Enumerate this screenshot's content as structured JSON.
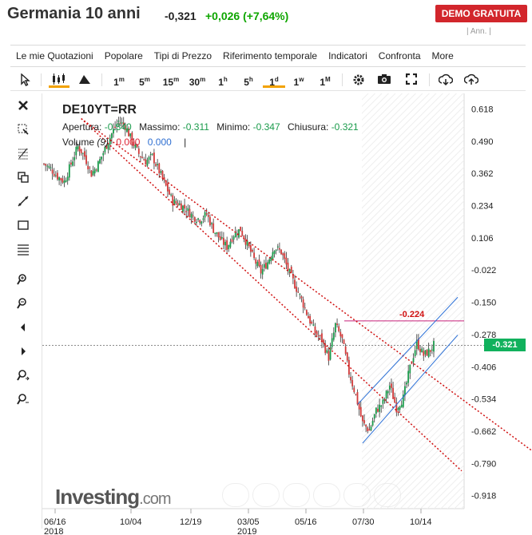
{
  "header": {
    "title": "Germania 10 anni",
    "last": "-0,321",
    "change": "+0,026 (+7,64%)",
    "demo_button": "DEMO GRATUITA",
    "ann": "| Ann. |"
  },
  "menu": [
    "Le mie Quotazioni",
    "Popolare",
    "Tipi di Prezzo",
    "Riferimento temporale",
    "Indicatori",
    "Confronta",
    "More"
  ],
  "toolbar": {
    "cursor_icon": "cursor-icon",
    "candles_icon": "candlestick-icon",
    "mountain_icon": "area-chart-icon",
    "timeframes": [
      {
        "label": "1",
        "unit": "m"
      },
      {
        "label": "5",
        "unit": "m"
      },
      {
        "label": "15",
        "unit": "m"
      },
      {
        "label": "30",
        "unit": "m"
      },
      {
        "label": "1",
        "unit": "h"
      },
      {
        "label": "5",
        "unit": "h"
      },
      {
        "label": "1",
        "unit": "d"
      },
      {
        "label": "1",
        "unit": "w"
      },
      {
        "label": "1",
        "unit": "M"
      }
    ],
    "active_timeframe": "1d",
    "right_icons": [
      "settings-icon",
      "camera-icon",
      "fullscreen-icon",
      "download-icon",
      "upload-icon"
    ]
  },
  "side_tools": [
    "close-icon",
    "crosshair-icon",
    "fibonacci-icon",
    "rectangle-copy-icon",
    "trendline-icon",
    "rectangle-icon",
    "horizontal-lines-icon",
    "zoom-in-icon",
    "zoom-out-icon",
    "scroll-left-icon",
    "scroll-right-icon",
    "zoom-extent-in-icon",
    "zoom-extent-out-icon"
  ],
  "legend": {
    "ticker": "DE10YT=RR",
    "open_label": "Apertura:",
    "open": "-0.340",
    "high_label": "Massimo:",
    "high": "-0.311",
    "low_label": "Minimo:",
    "low": "-0.347",
    "close_label": "Chiusura:",
    "close": "-0.321",
    "volume_label": "Volume",
    "volume_period": "(9)",
    "volume_red": "0.000",
    "volume_blue": "0.000",
    "volume_cursor": "|"
  },
  "watermark": {
    "brand": "Investing",
    "domain": ".com"
  },
  "colors": {
    "up": "#1a9b4b",
    "down": "#d23a3a",
    "trend_red": "#d01010",
    "channel_blue": "#2a6fd6",
    "level_magenta": "#c8207a",
    "last_badge": "#11b15d"
  },
  "annotation": {
    "level_value": "-0.224",
    "last_badge": "-0.321"
  },
  "chart_data": {
    "type": "candlestick",
    "instrument": "DE10YT=RR",
    "y_ticks": [
      "0.618",
      "0.490",
      "0.362",
      "0.234",
      "0.106",
      "-0.022",
      "-0.150",
      "-0.278",
      "-0.406",
      "-0.534",
      "-0.662",
      "-0.790",
      "-0.918"
    ],
    "x_ticks": [
      {
        "label": "06/16",
        "sub": "2018"
      },
      {
        "label": "10/04",
        "sub": ""
      },
      {
        "label": "12/19",
        "sub": ""
      },
      {
        "label": "03/05",
        "sub": "2019"
      },
      {
        "label": "05/16",
        "sub": ""
      },
      {
        "label": "07/30",
        "sub": ""
      },
      {
        "label": "10/14",
        "sub": ""
      }
    ],
    "ylim": [
      -0.97,
      0.68
    ],
    "horizontal_level": -0.224,
    "last_close": -0.321,
    "close_path": [
      [
        0,
        0.4
      ],
      [
        4,
        0.38
      ],
      [
        8,
        0.35
      ],
      [
        12,
        0.33
      ],
      [
        16,
        0.4
      ],
      [
        20,
        0.47
      ],
      [
        24,
        0.43
      ],
      [
        28,
        0.36
      ],
      [
        32,
        0.4
      ],
      [
        36,
        0.46
      ],
      [
        40,
        0.52
      ],
      [
        44,
        0.57
      ],
      [
        48,
        0.55
      ],
      [
        52,
        0.49
      ],
      [
        56,
        0.44
      ],
      [
        60,
        0.41
      ],
      [
        64,
        0.43
      ],
      [
        68,
        0.37
      ],
      [
        72,
        0.31
      ],
      [
        76,
        0.25
      ],
      [
        80,
        0.24
      ],
      [
        84,
        0.22
      ],
      [
        88,
        0.19
      ],
      [
        92,
        0.18
      ],
      [
        96,
        0.2
      ],
      [
        100,
        0.14
      ],
      [
        104,
        0.1
      ],
      [
        108,
        0.07
      ],
      [
        112,
        0.12
      ],
      [
        116,
        0.14
      ],
      [
        120,
        0.08
      ],
      [
        124,
        0.02
      ],
      [
        128,
        -0.03
      ],
      [
        132,
        0.01
      ],
      [
        136,
        0.07
      ],
      [
        140,
        0.05
      ],
      [
        144,
        -0.02
      ],
      [
        148,
        -0.08
      ],
      [
        152,
        -0.14
      ],
      [
        156,
        -0.21
      ],
      [
        160,
        -0.27
      ],
      [
        164,
        -0.3
      ],
      [
        168,
        -0.37
      ],
      [
        172,
        -0.24
      ],
      [
        176,
        -0.3
      ],
      [
        180,
        -0.43
      ],
      [
        184,
        -0.52
      ],
      [
        188,
        -0.63
      ],
      [
        192,
        -0.66
      ],
      [
        196,
        -0.58
      ],
      [
        200,
        -0.55
      ],
      [
        204,
        -0.48
      ],
      [
        208,
        -0.57
      ],
      [
        212,
        -0.53
      ],
      [
        216,
        -0.41
      ],
      [
        220,
        -0.31
      ],
      [
        224,
        -0.36
      ],
      [
        228,
        -0.34
      ],
      [
        230,
        -0.32
      ]
    ]
  }
}
